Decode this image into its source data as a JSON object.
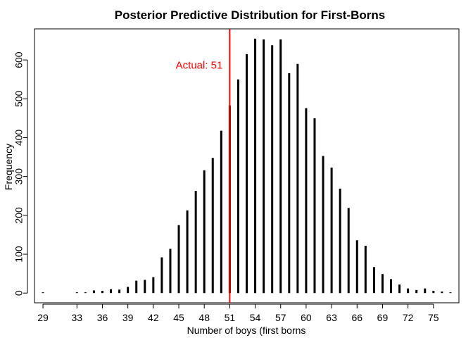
{
  "chart_data": {
    "type": "bar",
    "title": "Posterior Predictive Distribution for First-Borns",
    "xlabel": "Number of boys (first borns",
    "ylabel": "Frequency",
    "x": [
      29,
      33,
      34,
      35,
      36,
      37,
      38,
      39,
      40,
      41,
      42,
      43,
      44,
      45,
      46,
      47,
      48,
      49,
      50,
      51,
      52,
      53,
      54,
      55,
      56,
      57,
      58,
      59,
      60,
      61,
      62,
      63,
      64,
      65,
      66,
      67,
      68,
      69,
      70,
      71,
      72,
      73,
      74,
      75,
      76,
      77
    ],
    "values": [
      1,
      1,
      1,
      6,
      5,
      9,
      8,
      15,
      31,
      33,
      40,
      91,
      113,
      174,
      212,
      262,
      315,
      347,
      417,
      482,
      549,
      614,
      654,
      652,
      637,
      652,
      565,
      589,
      475,
      449,
      352,
      322,
      268,
      218,
      135,
      121,
      66,
      48,
      35,
      21,
      11,
      7,
      11,
      5,
      3,
      1
    ],
    "xticks": [
      29,
      33,
      36,
      39,
      42,
      45,
      48,
      51,
      54,
      57,
      60,
      63,
      66,
      69,
      72,
      75
    ],
    "yticks": [
      0,
      100,
      200,
      300,
      400,
      500,
      600
    ],
    "xlim": [
      28,
      78
    ],
    "ylim": [
      -25,
      680
    ],
    "grid": false,
    "colors": {
      "bars": "#000000",
      "reference_line": "#ff0000"
    },
    "reference_line": {
      "x": 51,
      "label": "Actual: 51"
    }
  }
}
